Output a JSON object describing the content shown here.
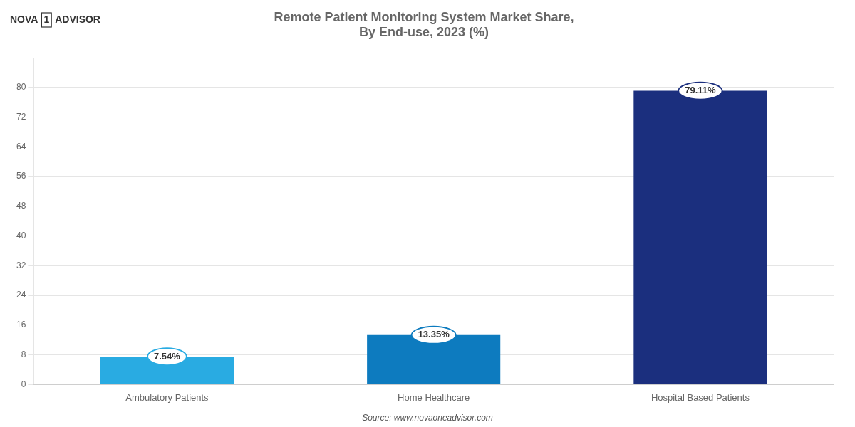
{
  "chart_data": {
    "type": "bar",
    "title": "Remote Patient Monitoring System Market Share,\nBy End-use, 2023 (%)",
    "categories": [
      "Ambulatory Patients",
      "Home Healthcare",
      "Hospital Based Patients"
    ],
    "values": [
      7.54,
      13.35,
      79.11
    ],
    "value_labels": [
      "7.54%",
      "13.35%",
      "79.11%"
    ],
    "data_labels": true,
    "colors": [
      "#29ABE2",
      "#0D7BBF",
      "#1B2F7E"
    ],
    "ylim": [
      0,
      88
    ],
    "yticks": [
      0,
      8,
      16,
      24,
      32,
      40,
      48,
      56,
      64,
      72,
      80
    ],
    "grid": true,
    "annotations": [
      "Source: www.novaoneadvisor.com",
      "NOVA",
      "1",
      "ADVISOR"
    ]
  }
}
